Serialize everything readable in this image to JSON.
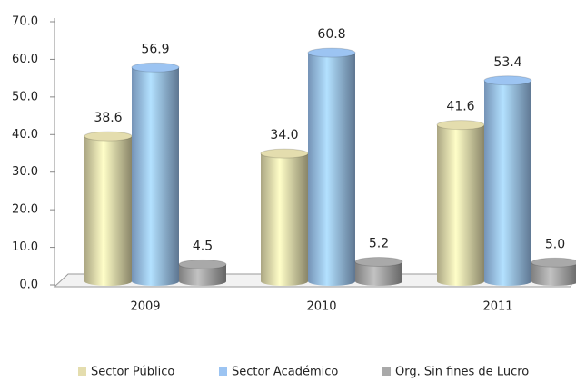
{
  "chart_data": {
    "type": "bar",
    "categories": [
      "2009",
      "2010",
      "2011"
    ],
    "series": [
      {
        "name": "Sector Público",
        "color": "#e4ddae",
        "values": [
          38.6,
          34.0,
          41.6
        ],
        "value_labels": [
          "38.6",
          "34.0",
          "41.6"
        ]
      },
      {
        "name": "Sector Académico",
        "color": "#9cc4f2",
        "values": [
          56.9,
          60.8,
          53.4
        ],
        "value_labels": [
          "56.9",
          "60.8",
          "53.4"
        ]
      },
      {
        "name": "Org. Sin fines de Lucro",
        "color": "#a9a9a9",
        "values": [
          4.5,
          5.2,
          5.0
        ],
        "value_labels": [
          "4.5",
          "5.2",
          "5.0"
        ]
      }
    ],
    "ylim": [
      0,
      70
    ],
    "yticks": [
      {
        "value": 0,
        "label": "0.0"
      },
      {
        "value": 10,
        "label": "10.0"
      },
      {
        "value": 20,
        "label": "20.0"
      },
      {
        "value": 30,
        "label": "30.0"
      },
      {
        "value": 40,
        "label": "40.0"
      },
      {
        "value": 50,
        "label": "50.0"
      },
      {
        "value": 60,
        "label": "60.0"
      },
      {
        "value": 70,
        "label": "70.0"
      }
    ],
    "legend": "bottom"
  }
}
